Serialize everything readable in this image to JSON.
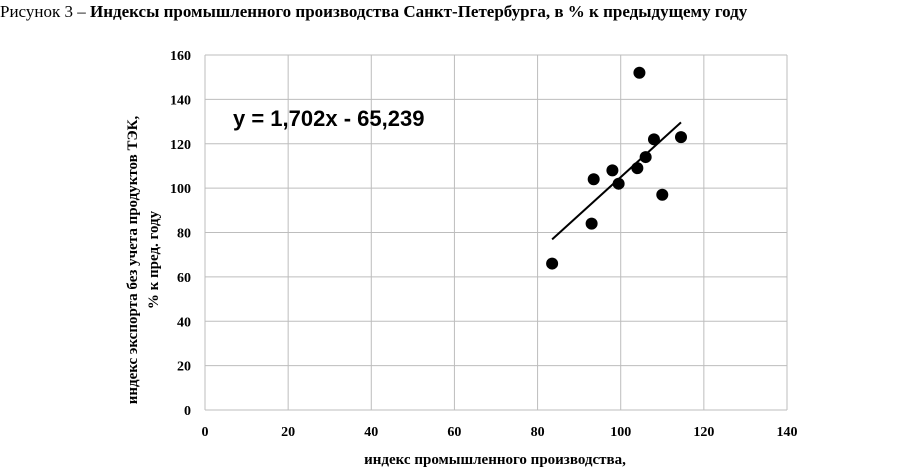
{
  "caption": {
    "lead": "Рисунок 3 – ",
    "main": "Индексы промышленного производства Санкт-Петербурга, в % к предыдущему году"
  },
  "chart_data": {
    "type": "scatter",
    "xlabel": "индекс промышленного производства,",
    "ylabel_line1": "индекс экспорта без учета продуктов ТЭК,",
    "ylabel_line2": "% к пред. году",
    "xlim": [
      0,
      140
    ],
    "ylim": [
      0,
      160
    ],
    "x_ticks": [
      0,
      20,
      40,
      60,
      80,
      100,
      120,
      140
    ],
    "y_ticks": [
      0,
      20,
      40,
      60,
      80,
      100,
      120,
      140,
      160
    ],
    "grid": true,
    "points": [
      {
        "x": 83.5,
        "y": 66
      },
      {
        "x": 93,
        "y": 84
      },
      {
        "x": 93.5,
        "y": 104
      },
      {
        "x": 98,
        "y": 108
      },
      {
        "x": 99.5,
        "y": 102
      },
      {
        "x": 104,
        "y": 109
      },
      {
        "x": 104.5,
        "y": 152
      },
      {
        "x": 106,
        "y": 114
      },
      {
        "x": 108,
        "y": 122
      },
      {
        "x": 110,
        "y": 97
      },
      {
        "x": 114.5,
        "y": 123
      }
    ],
    "trendline": {
      "equation": "y = 1,702x - 65,239",
      "slope": 1.702,
      "intercept": -65.239,
      "x_range": [
        83.5,
        114.5
      ]
    }
  }
}
